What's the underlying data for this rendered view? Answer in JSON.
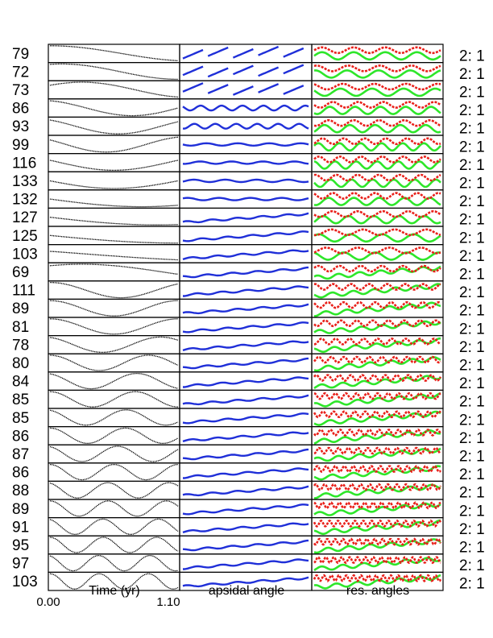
{
  "chart_data": {
    "type": "line",
    "panels": [
      {
        "name": "orbit",
        "xlabel": "Time (yr)",
        "xlim": [
          0.0,
          1.1
        ],
        "tick_labels": [
          "0.00",
          "1.10"
        ]
      },
      {
        "name": "apsidal",
        "xlabel": "apsidal angle"
      },
      {
        "name": "resonance",
        "xlabel": "res. angles"
      }
    ],
    "row_labels": [
      "79",
      "72",
      "73",
      "86",
      "93",
      "99",
      "116",
      "133",
      "132",
      "127",
      "125",
      "103",
      "69",
      "111",
      "89",
      "81",
      "78",
      "80",
      "84",
      "85",
      "85",
      "86",
      "87",
      "86",
      "88",
      "89",
      "91",
      "95",
      "97",
      "103"
    ],
    "right_label": "2: 1",
    "right_count": 30,
    "orbit_cycles": [
      0.45,
      0.55,
      0.6,
      0.7,
      0.75,
      0.8,
      0.6,
      0.5,
      0.35,
      0.3,
      0.25,
      0.2,
      0.4,
      0.9,
      1.0,
      1.0,
      1.1,
      1.3,
      1.4,
      1.5,
      1.6,
      1.7,
      1.8,
      2.0,
      2.1,
      2.2,
      2.3,
      2.4,
      2.5,
      2.6
    ],
    "orbit_phase": [
      0.25,
      0.2,
      0.1,
      0.3,
      0.35,
      0.4,
      0.45,
      0.5,
      0.5,
      0.5,
      0.5,
      0.45,
      0.15,
      0.25,
      0.25,
      0.25,
      0.3,
      0.25,
      0.3,
      0.25,
      0.3,
      0.25,
      0.3,
      0.25,
      0.3,
      0.25,
      0.3,
      0.25,
      0.3,
      0.25
    ],
    "apsidal_style": [
      "saw",
      "saw",
      "saw",
      "wave",
      "wave",
      "flat",
      "flat",
      "flat",
      "flat",
      "ramp",
      "ramp",
      "ramp",
      "ramp",
      "ramp",
      "ramp",
      "ramp",
      "ramp",
      "ramp",
      "ramp",
      "ramp",
      "ramp",
      "ramp",
      "ramp",
      "ramp",
      "ramp",
      "ramp",
      "ramp",
      "ramp",
      "ramp",
      "ramp"
    ],
    "res_red_cycles": [
      4,
      4,
      4,
      5,
      5,
      6,
      6,
      6,
      6,
      5,
      4,
      4,
      6,
      7,
      8,
      8,
      9,
      10,
      11,
      12,
      12,
      13,
      13,
      14,
      14,
      15,
      15,
      16,
      16,
      17
    ],
    "res_green_cycles": [
      4,
      4,
      4,
      5,
      5,
      6,
      6,
      6,
      5,
      5,
      4,
      4,
      3,
      3,
      3,
      3,
      3,
      3,
      3,
      3,
      3,
      3,
      3,
      3,
      3,
      3,
      3,
      3,
      3,
      3
    ],
    "colors": {
      "orbit": "#000000",
      "apsidal": "#1f2fd8",
      "red": "#e8201a",
      "green": "#2ee62a"
    }
  }
}
